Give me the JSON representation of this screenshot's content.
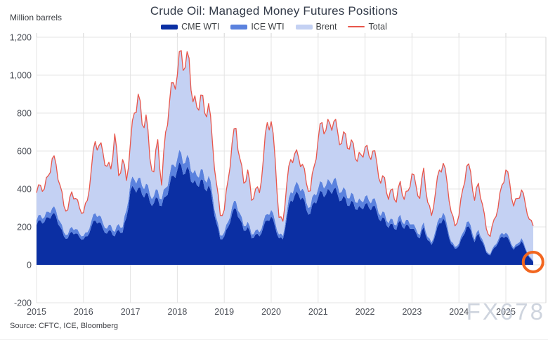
{
  "title": "Crude Oil: Managed Money Futures Positions",
  "unit_label": "Million barrels",
  "source": "Source: CFTC, ICE, Bloomberg",
  "watermark": "FX678",
  "colors": {
    "cme_wti": "#0b2fa3",
    "ice_wti": "#5b82de",
    "brent": "#c4d1f3",
    "total_line": "#e8564b",
    "annotation": "#f2661f",
    "grid": "#e4e4e4",
    "axis_border": "#d6d6d6",
    "tick_text": "#4b4f57"
  },
  "chart_data": {
    "type": "area",
    "stacked": true,
    "title": "Crude Oil: Managed Money Futures Positions",
    "ylabel": "Million barrels",
    "xlabel": "",
    "ylim": [
      -200,
      1200
    ],
    "y_grid_step": 200,
    "grid": true,
    "legend_position": "top-center",
    "frequency": "monthly",
    "x_start_year": 2015,
    "x_step_years": 0.0833333,
    "y_ticks": {
      "values": [
        -200,
        0,
        200,
        400,
        600,
        800,
        1000,
        1200
      ],
      "labels": [
        "-200",
        "0",
        "200",
        "400",
        "600",
        "800",
        "1,000",
        "1,200"
      ]
    },
    "x_ticks": {
      "values": [
        2015,
        2016,
        2017,
        2018,
        2019,
        2020,
        2021,
        2022,
        2023,
        2024,
        2025
      ],
      "labels": [
        "2015",
        "2016",
        "2017",
        "2018",
        "2019",
        "2020",
        "2021",
        "2022",
        "2023",
        "2024",
        "2025"
      ]
    },
    "series": [
      {
        "name": "CME WTI",
        "role": "area",
        "color": "#0b2fa3",
        "values": [
          210,
          235,
          225,
          250,
          265,
          255,
          200,
          150,
          140,
          175,
          165,
          145,
          135,
          150,
          200,
          235,
          225,
          190,
          165,
          180,
          150,
          185,
          170,
          250,
          390,
          400,
          405,
          370,
          380,
          330,
          325,
          350,
          310,
          360,
          420,
          470,
          500,
          525,
          480,
          500,
          430,
          420,
          450,
          400,
          420,
          330,
          220,
          135,
          150,
          200,
          270,
          295,
          240,
          180,
          200,
          140,
          160,
          150,
          200,
          235,
          255,
          200,
          140,
          135,
          250,
          340,
          365,
          370,
          355,
          290,
          270,
          330,
          355,
          385,
          370,
          390,
          400,
          370,
          340,
          350,
          310,
          330,
          290,
          300,
          320,
          300,
          310,
          280,
          230,
          245,
          195,
          215,
          185,
          235,
          190,
          210,
          190,
          170,
          140,
          200,
          130,
          105,
          160,
          220,
          245,
          185,
          110,
          85,
          100,
          150,
          200,
          185,
          120,
          165,
          120,
          65,
          50,
          90,
          115,
          150,
          150,
          120,
          80,
          100,
          125,
          80,
          40,
          15
        ]
      },
      {
        "name": "ICE WTI",
        "role": "area",
        "color": "#5b82de",
        "values": [
          25,
          28,
          26,
          30,
          34,
          32,
          28,
          22,
          20,
          26,
          24,
          20,
          18,
          22,
          30,
          38,
          36,
          30,
          26,
          30,
          24,
          30,
          28,
          40,
          45,
          50,
          52,
          46,
          48,
          40,
          38,
          44,
          36,
          46,
          52,
          58,
          60,
          65,
          58,
          62,
          52,
          50,
          54,
          48,
          50,
          40,
          28,
          20,
          22,
          28,
          36,
          40,
          32,
          25,
          28,
          20,
          23,
          22,
          28,
          33,
          35,
          28,
          20,
          18,
          32,
          44,
          48,
          50,
          47,
          38,
          36,
          44,
          46,
          50,
          48,
          50,
          52,
          48,
          44,
          45,
          40,
          42,
          37,
          38,
          40,
          38,
          39,
          35,
          29,
          31,
          25,
          27,
          23,
          30,
          24,
          27,
          24,
          22,
          18,
          26,
          17,
          13,
          20,
          28,
          31,
          23,
          14,
          11,
          13,
          19,
          26,
          24,
          15,
          21,
          15,
          8,
          7,
          11,
          15,
          19,
          19,
          15,
          10,
          13,
          16,
          10,
          6,
          5
        ]
      },
      {
        "name": "Brent",
        "role": "area",
        "color": "#c4d1f3",
        "values": [
          145,
          157,
          149,
          190,
          261,
          243,
          192,
          138,
          130,
          184,
          161,
          135,
          122,
          168,
          270,
          377,
          369,
          370,
          329,
          295,
          516,
          255,
          357,
          155,
          205,
          350,
          443,
          324,
          362,
          190,
          127,
          266,
          74,
          294,
          388,
          432,
          440,
          540,
          502,
          528,
          378,
          360,
          391,
          352,
          380,
          270,
          182,
          105,
          118,
          222,
          334,
          385,
          288,
          225,
          272,
          180,
          217,
          208,
          332,
          482,
          465,
          332,
          90,
          77,
          148,
          171,
          172,
          145,
          128,
          102,
          84,
          146,
          259,
          315,
          292,
          305,
          303,
          282,
          256,
          295,
          260,
          268,
          218,
          242,
          260,
          237,
          251,
          225,
          171,
          184,
          125,
          158,
          122,
          175,
          131,
          153,
          266,
          228,
          192,
          284,
          183,
          142,
          200,
          252,
          259,
          222,
          156,
          109,
          147,
          231,
          294,
          281,
          205,
          244,
          185,
          117,
          93,
          139,
          170,
          251,
          331,
          295,
          220,
          237,
          254,
          230,
          194,
          185
        ]
      },
      {
        "name": "Total",
        "role": "line",
        "color": "#e8564b",
        "values": [
          380,
          420,
          400,
          470,
          560,
          530,
          420,
          310,
          290,
          385,
          350,
          300,
          275,
          340,
          500,
          650,
          630,
          590,
          520,
          505,
          690,
          470,
          555,
          445,
          640,
          800,
          900,
          740,
          790,
          560,
          490,
          660,
          420,
          700,
          860,
          960,
          1000,
          1130,
          1040,
          1090,
          860,
          830,
          895,
          800,
          850,
          640,
          430,
          260,
          290,
          450,
          640,
          720,
          560,
          430,
          500,
          340,
          400,
          380,
          560,
          750,
          755,
          560,
          250,
          230,
          430,
          555,
          585,
          565,
          530,
          430,
          390,
          520,
          660,
          750,
          710,
          745,
          755,
          700,
          640,
          690,
          610,
          640,
          545,
          580,
          620,
          575,
          600,
          540,
          430,
          460,
          345,
          400,
          330,
          440,
          345,
          390,
          480,
          420,
          350,
          510,
          330,
          260,
          380,
          500,
          535,
          430,
          280,
          205,
          260,
          400,
          520,
          490,
          340,
          430,
          320,
          190,
          150,
          240,
          300,
          420,
          500,
          430,
          310,
          350,
          395,
          320,
          240,
          205
        ]
      }
    ],
    "annotations": [
      {
        "shape": "circle",
        "x_year": 2025.58,
        "value": 15,
        "radius": 14,
        "color": "#f2661f",
        "stroke_width": 4,
        "meaning": "highlight of latest near-zero CME WTI position"
      }
    ]
  }
}
